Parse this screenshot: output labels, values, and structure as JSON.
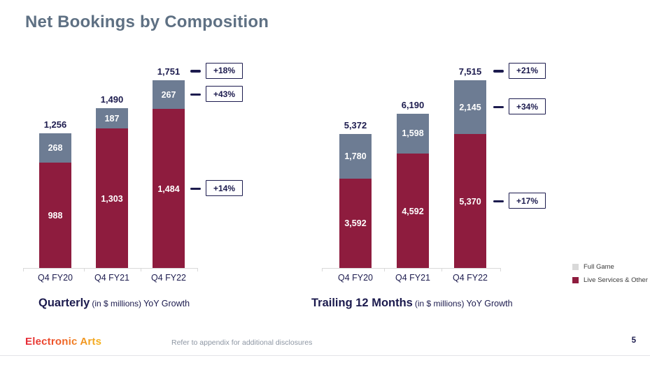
{
  "title": "Net Bookings by Composition",
  "page_number": "5",
  "footer": {
    "logo_text": "Electronic Arts",
    "disclosure": "Refer to appendix for additional disclosures"
  },
  "legend": {
    "items": [
      {
        "label": "Full Game",
        "color": "#d9d9d9"
      },
      {
        "label": "Live Services & Other",
        "color": "#8e1c3e"
      }
    ]
  },
  "colors": {
    "live_services": "#8e1c3e",
    "full_game": "#6d7c93",
    "navy": "#1c1b4e",
    "axis": "#d9d9d9"
  },
  "chart_data": [
    {
      "id": "quarterly",
      "type": "bar",
      "stacked": true,
      "caption": {
        "title": "Quarterly",
        "units": "(in $ millions)",
        "suffix": "YoY Growth"
      },
      "categories": [
        "Q4 FY20",
        "Q4 FY21",
        "Q4 FY22"
      ],
      "series": [
        {
          "name": "Live Services & Other",
          "color_key": "live_services",
          "values": [
            988,
            1303,
            1484
          ],
          "labels": [
            "988",
            "1,303",
            "1,484"
          ]
        },
        {
          "name": "Full Game",
          "color_key": "full_game",
          "values": [
            268,
            187,
            267
          ],
          "labels": [
            "268",
            "187",
            "267"
          ]
        }
      ],
      "totals": [
        1256,
        1490,
        1751
      ],
      "total_labels": [
        "1,256",
        "1,490",
        "1,751"
      ],
      "callouts": [
        {
          "label": "+18%",
          "anchor": "total"
        },
        {
          "label": "+43%",
          "anchor": "full_game"
        },
        {
          "label": "+14%",
          "anchor": "live_services"
        }
      ],
      "legend_visible": false
    },
    {
      "id": "ttm",
      "type": "bar",
      "stacked": true,
      "caption": {
        "title": "Trailing 12 Months",
        "units": "(in $ millions)",
        "suffix": "YoY Growth"
      },
      "categories": [
        "Q4 FY20",
        "Q4 FY21",
        "Q4 FY22"
      ],
      "series": [
        {
          "name": "Live Services & Other",
          "color_key": "live_services",
          "values": [
            3592,
            4592,
            5370
          ],
          "labels": [
            "3,592",
            "4,592",
            "5,370"
          ]
        },
        {
          "name": "Full Game",
          "color_key": "full_game",
          "values": [
            1780,
            1598,
            2145
          ],
          "labels": [
            "1,780",
            "1,598",
            "2,145"
          ]
        }
      ],
      "totals": [
        5372,
        6190,
        7515
      ],
      "total_labels": [
        "5,372",
        "6,190",
        "7,515"
      ],
      "callouts": [
        {
          "label": "+21%",
          "anchor": "total"
        },
        {
          "label": "+34%",
          "anchor": "full_game"
        },
        {
          "label": "+17%",
          "anchor": "live_services"
        }
      ],
      "legend_visible": true
    }
  ]
}
